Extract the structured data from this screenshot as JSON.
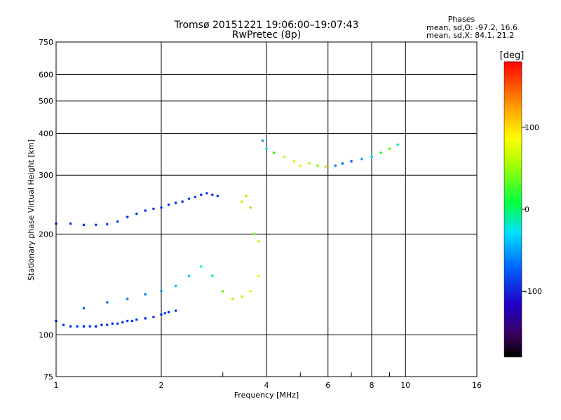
{
  "header": {
    "title_line1": "Tromsø 20151221 19:06:00–19:07:43",
    "title_line2": "RwPretec (8p)"
  },
  "stats": {
    "heading": "Phases",
    "line_o": "mean, sd,O:  -97.2, 16.6",
    "line_x": "mean, sd,X:  84.1, 21.2"
  },
  "colorbar": {
    "unit_label": "[deg]",
    "tick_labels": [
      "100",
      "0",
      "-100"
    ],
    "tick_values": [
      100,
      0,
      -100
    ],
    "range": [
      -180,
      180
    ]
  },
  "chart_data": {
    "type": "scatter",
    "xlabel": "Frequency [MHz]",
    "ylabel": "Stationary phase Virtual Height [km]",
    "xscale": "log",
    "yscale": "log",
    "xlim": [
      1,
      16
    ],
    "ylim": [
      75,
      750
    ],
    "x_ticks": [
      1,
      2,
      4,
      6,
      8,
      10,
      16
    ],
    "x_tick_labels": [
      "1",
      "2",
      "4",
      "6",
      "8",
      "10",
      "16"
    ],
    "x_minor": [
      3,
      5,
      7,
      9
    ],
    "y_ticks": [
      75,
      100,
      200,
      300,
      400,
      500,
      600,
      750
    ],
    "y_tick_labels": [
      "75",
      "100",
      "200",
      "300",
      "400",
      "500",
      "600",
      "750"
    ],
    "y_grid": [
      100,
      200,
      300,
      400,
      500,
      600
    ],
    "grid": true,
    "color_encoding": "phase [deg]",
    "series": [
      {
        "x": [
          1.0,
          1.05,
          1.1,
          1.15,
          1.2,
          1.25,
          1.3,
          1.35,
          1.4,
          1.45,
          1.5,
          1.55,
          1.6,
          1.65,
          1.7,
          1.8,
          1.9,
          2.0,
          2.05,
          2.1,
          2.2
        ],
        "y": [
          110,
          107,
          106,
          106,
          106,
          106,
          106,
          107,
          107,
          108,
          108,
          109,
          110,
          110,
          111,
          112,
          113,
          115,
          116,
          117,
          118
        ],
        "phase": [
          -115,
          -110,
          -112,
          -108,
          -115,
          -110,
          -118,
          -112,
          -110,
          -114,
          -108,
          -112,
          -110,
          -115,
          -108,
          -112,
          -110,
          -114,
          -110,
          -112,
          -108
        ]
      },
      {
        "x": [
          1.0,
          1.1,
          1.2,
          1.3,
          1.4,
          1.5,
          1.6,
          1.7,
          1.8,
          1.9,
          2.0,
          2.1,
          2.2,
          2.3,
          2.4,
          2.5,
          2.6,
          2.7,
          2.8,
          2.9
        ],
        "y": [
          215,
          215,
          213,
          213,
          214,
          218,
          225,
          230,
          235,
          238,
          240,
          245,
          248,
          250,
          255,
          258,
          262,
          265,
          262,
          260
        ],
        "phase": [
          -110,
          -112,
          -115,
          -110,
          -112,
          -108,
          -115,
          -110,
          -112,
          -110,
          -112,
          -108,
          -115,
          -112,
          -110,
          -108,
          -112,
          -110,
          -115,
          -112
        ]
      },
      {
        "x": [
          1.2,
          1.4,
          1.6,
          1.8,
          2.0,
          2.2,
          2.4,
          2.6,
          2.8,
          3.0,
          3.2,
          3.4,
          3.6,
          3.8
        ],
        "y": [
          120,
          125,
          128,
          132,
          135,
          140,
          150,
          160,
          150,
          135,
          128,
          130,
          135,
          150
        ],
        "phase": [
          -100,
          -95,
          -90,
          -85,
          -80,
          -70,
          -60,
          -40,
          -20,
          50,
          80,
          90,
          95,
          100
        ]
      },
      {
        "x": [
          3.4,
          3.5,
          3.6,
          3.7,
          3.8
        ],
        "y": [
          250,
          260,
          240,
          200,
          190
        ],
        "phase": [
          90,
          80,
          70,
          60,
          85
        ]
      },
      {
        "x": [
          3.9,
          4.0,
          4.2,
          4.5,
          4.8,
          5.0,
          5.3,
          5.6,
          5.9,
          6.3,
          6.6,
          7.0,
          7.5,
          8.0,
          8.5,
          9.0,
          9.5
        ],
        "y": [
          380,
          360,
          350,
          340,
          330,
          320,
          325,
          320,
          318,
          320,
          325,
          330,
          335,
          340,
          350,
          360,
          370
        ],
        "phase": [
          -80,
          -60,
          40,
          90,
          110,
          95,
          85,
          70,
          90,
          -90,
          -95,
          -100,
          -80,
          -60,
          40,
          60,
          -30
        ]
      }
    ]
  }
}
